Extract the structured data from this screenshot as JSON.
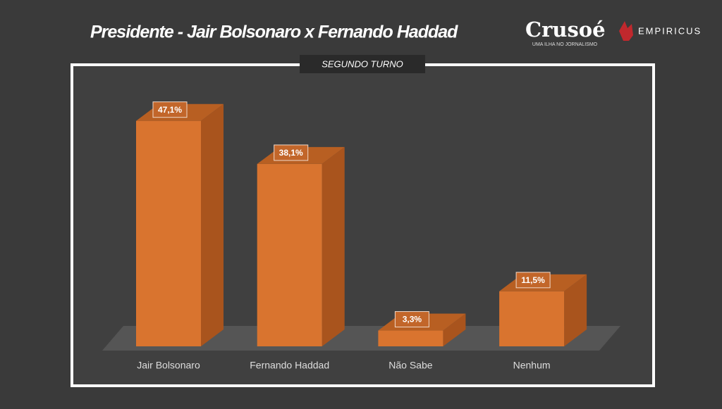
{
  "header": {
    "brand": "Crusoé",
    "tagline": "UMA ILHA NO JORNALISMO",
    "partner": "EMPIRICUS"
  },
  "chart_data": {
    "type": "bar",
    "title": "Presidente -  Jair Bolsonaro x Fernando Haddad",
    "subtitle": "SEGUNDO TURNO",
    "categories": [
      "Jair Bolsonaro",
      "Fernando Haddad",
      "Não Sabe",
      "Nenhum"
    ],
    "values": [
      47.1,
      38.1,
      3.3,
      11.5
    ],
    "value_labels": [
      "47,1%",
      "38,1%",
      "3,3%",
      "11,5%"
    ],
    "color": "#d9742f"
  }
}
